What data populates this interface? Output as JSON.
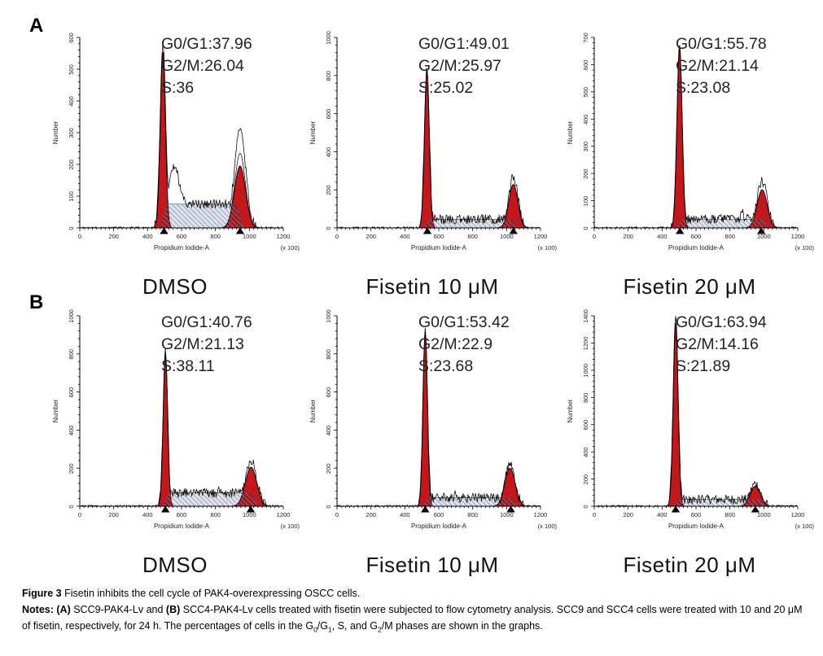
{
  "figure": {
    "panel_a_label": "A",
    "panel_b_label": "B"
  },
  "colors": {
    "peak_fill": "#c4171c",
    "hatch_line": "#7f8aa0",
    "s_outline": "#4a5368",
    "axis": "#000000"
  },
  "chart_data": {
    "type": "area",
    "xlabel": "Propidium Iodide-A",
    "x_scale_note": "(x 100)",
    "ylabel": "Number",
    "x_axis": {
      "min": 0,
      "max": 1200,
      "major": 200,
      "minor": 25
    },
    "annotation_labels": {
      "g0_g1": "G0/G1:",
      "g2_m": "G2/M:",
      "s": "S:"
    },
    "panels": [
      {
        "id": "A",
        "plots": [
          {
            "treatment": "DMSO",
            "percentages": {
              "g0_g1": 37.96,
              "g2_m": 26.04,
              "s": 36
            },
            "y_axis": {
              "max": 600,
              "major": 100
            },
            "g1_peak": {
              "center": 490,
              "sigma": 15,
              "fill_height": 555,
              "trace_height": 578
            },
            "g2_peak": {
              "center": 945,
              "sigma": 33,
              "fill_height": 195,
              "trace_height": 312
            },
            "g2_inner_height": 235,
            "s_region": {
              "start": 465,
              "end": 975,
              "height": 75,
              "edge": 60
            },
            "trace_bumps": [
              {
                "c": 558,
                "h": 120,
                "sigma": 26
              }
            ],
            "markers": [
              497,
              945
            ],
            "noise_seed": 7
          },
          {
            "treatment": "Fisetin 10 μM",
            "percentages": {
              "g0_g1": 49.01,
              "g2_m": 25.97,
              "s": 25.02
            },
            "y_axis": {
              "max": 1000,
              "major": 200
            },
            "g1_peak": {
              "center": 530,
              "sigma": 14,
              "fill_height": 830,
              "trace_height": 843
            },
            "g2_peak": {
              "center": 1040,
              "sigma": 27,
              "fill_height": 228,
              "trace_height": 272
            },
            "s_region": {
              "start": 500,
              "end": 1075,
              "height": 45,
              "edge": 50
            },
            "trace_bumps": [],
            "markers": [
              533,
              1040
            ],
            "noise_seed": 11
          },
          {
            "treatment": "Fisetin 20 μM",
            "percentages": {
              "g0_g1": 55.78,
              "g2_m": 21.14,
              "s": 23.08
            },
            "y_axis": {
              "max": 700,
              "major": 100
            },
            "g1_peak": {
              "center": 503,
              "sigma": 15,
              "fill_height": 660,
              "trace_height": 672
            },
            "g2_peak": {
              "center": 990,
              "sigma": 30,
              "fill_height": 140,
              "trace_height": 172
            },
            "s_region": {
              "start": 478,
              "end": 1032,
              "height": 32,
              "edge": 50
            },
            "trace_bumps": [
              {
                "c": 872,
                "h": 28,
                "sigma": 7
              }
            ],
            "markers": [
              505,
              985
            ],
            "noise_seed": 13
          }
        ]
      },
      {
        "id": "B",
        "plots": [
          {
            "treatment": "DMSO",
            "percentages": {
              "g0_g1": 40.76,
              "g2_m": 21.13,
              "s": 38.11
            },
            "y_axis": {
              "max": 1000,
              "major": 200
            },
            "g1_peak": {
              "center": 505,
              "sigma": 13,
              "fill_height": 800,
              "trace_height": 822
            },
            "g2_peak": {
              "center": 1010,
              "sigma": 34,
              "fill_height": 205,
              "trace_height": 238
            },
            "s_region": {
              "start": 480,
              "end": 1058,
              "height": 70,
              "edge": 55
            },
            "trace_bumps": [
              {
                "c": 830,
                "h": 22,
                "sigma": 12
              }
            ],
            "markers": [
              505,
              1008
            ],
            "noise_seed": 17
          },
          {
            "treatment": "Fisetin 10 μM",
            "percentages": {
              "g0_g1": 53.42,
              "g2_m": 22.9,
              "s": 23.68
            },
            "y_axis": {
              "max": 1000,
              "major": 200
            },
            "g1_peak": {
              "center": 520,
              "sigma": 13,
              "fill_height": 915,
              "trace_height": 932
            },
            "g2_peak": {
              "center": 1020,
              "sigma": 30,
              "fill_height": 200,
              "trace_height": 222
            },
            "s_region": {
              "start": 495,
              "end": 1068,
              "height": 45,
              "edge": 50
            },
            "trace_bumps": [
              {
                "c": 700,
                "h": 16,
                "sigma": 8
              }
            ],
            "markers": [
              520,
              1025
            ],
            "noise_seed": 19
          },
          {
            "treatment": "Fisetin 20 μM",
            "percentages": {
              "g0_g1": 63.94,
              "g2_m": 14.16,
              "s": 21.89
            },
            "y_axis": {
              "max": 1400,
              "major": 200
            },
            "g1_peak": {
              "center": 480,
              "sigma": 14,
              "fill_height": 1345,
              "trace_height": 1392
            },
            "g2_peak": {
              "center": 950,
              "sigma": 30,
              "fill_height": 148,
              "trace_height": 168
            },
            "s_region": {
              "start": 455,
              "end": 1012,
              "height": 50,
              "edge": 50
            },
            "trace_bumps": [],
            "markers": [
              480,
              950
            ],
            "noise_seed": 23
          }
        ]
      }
    ]
  },
  "caption": {
    "title_segments": [
      {
        "t": "Figure 3",
        "b": true
      },
      {
        "t": " Fisetin inhibits the cell cycle of PAK4-overexpressing OSCC cells."
      }
    ],
    "notes_segments": [
      {
        "t": "Notes: ",
        "b": true
      },
      {
        "t": "(A)",
        "b": true
      },
      {
        "t": " SCC9-PAK4-Lv and "
      },
      {
        "t": "(B)",
        "b": true
      },
      {
        "t": " SCC4-PAK4-Lv cells treated with fisetin were subjected to flow cytometry analysis. SCC9 and SCC4 cells were treated with 10 and 20 μM of fisetin, respectively, for 24 h. The percentages of cells in the G"
      },
      {
        "t": "0",
        "sub": true
      },
      {
        "t": "/G"
      },
      {
        "t": "1",
        "sub": true
      },
      {
        "t": ", S, and G"
      },
      {
        "t": "2",
        "sub": true
      },
      {
        "t": "/M phases are shown in the graphs."
      }
    ]
  }
}
